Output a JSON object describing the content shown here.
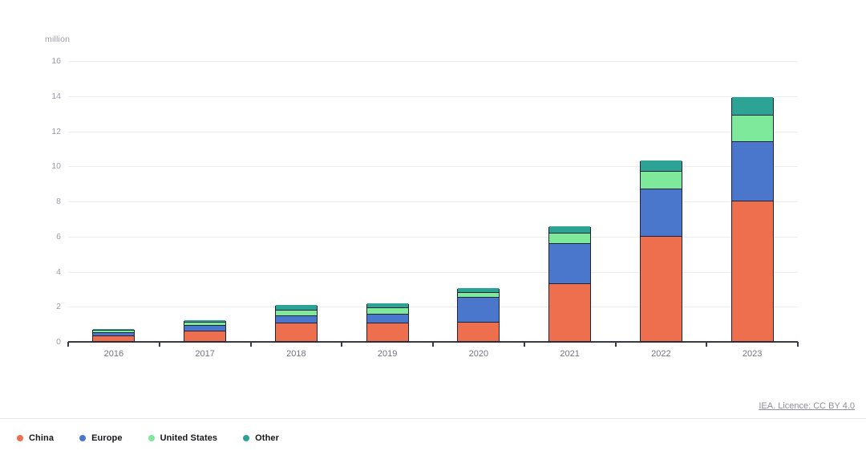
{
  "chart_data": {
    "type": "bar",
    "stacked": true,
    "title": "",
    "unit_label": "million",
    "categories": [
      "2016",
      "2017",
      "2018",
      "2019",
      "2020",
      "2021",
      "2022",
      "2023"
    ],
    "series": [
      {
        "name": "China",
        "color": "#ed6f4d",
        "values": [
          0.3,
          0.6,
          1.05,
          1.05,
          1.1,
          3.3,
          6.0,
          8.0
        ]
      },
      {
        "name": "Europe",
        "color": "#4a76cb",
        "values": [
          0.2,
          0.3,
          0.4,
          0.5,
          1.4,
          2.3,
          2.7,
          3.4
        ]
      },
      {
        "name": "United States",
        "color": "#7ee99b",
        "values": [
          0.15,
          0.2,
          0.35,
          0.35,
          0.3,
          0.55,
          1.0,
          1.5
        ]
      },
      {
        "name": "Other",
        "color": "#2ca395",
        "values": [
          0.05,
          0.1,
          0.25,
          0.25,
          0.2,
          0.4,
          0.6,
          1.0
        ]
      }
    ],
    "totals": [
      0.7,
      1.2,
      2.05,
      2.15,
      3.0,
      6.55,
      10.3,
      13.9
    ],
    "ylabel": "million",
    "xlabel": "",
    "ylim": [
      0,
      16
    ],
    "y_ticks": [
      0,
      2,
      4,
      6,
      8,
      10,
      12,
      14,
      16
    ],
    "grid": true,
    "bar_outline_color": "#1f2537",
    "legend_position": "bottom-left"
  },
  "footer": {
    "licence_text": "IEA. Licence: CC BY 4.0"
  }
}
